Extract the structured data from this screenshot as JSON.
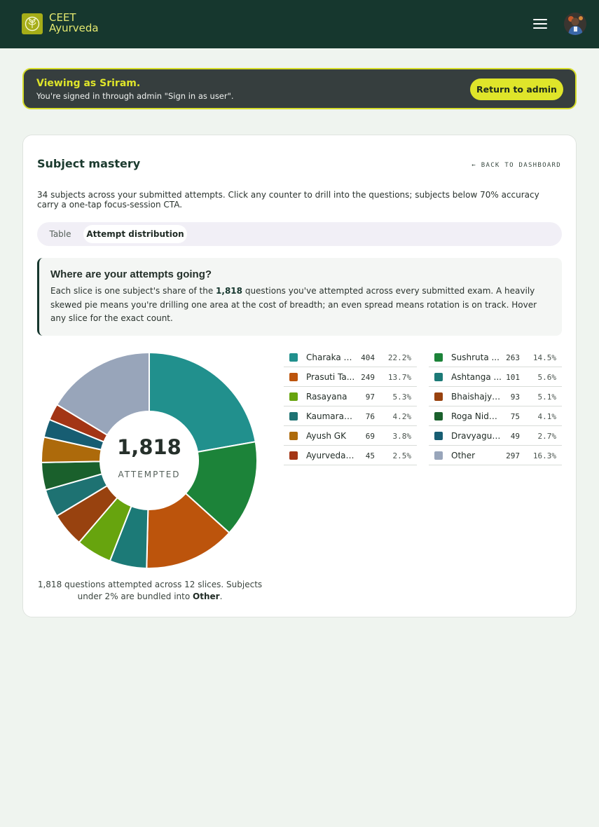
{
  "app": {
    "brand_line1": "CEET",
    "brand_line2": "Ayurveda",
    "accent": "#dfe52a",
    "header_bg": "#16372e"
  },
  "banner": {
    "title": "Viewing as Sriram.",
    "subtitle": "You're signed in through admin \"Sign in as user\".",
    "button": "Return to admin"
  },
  "card": {
    "title": "Subject mastery",
    "back_link": "← BACK TO DASHBOARD",
    "description": "34 subjects across your submitted attempts. Click any counter to drill into the questions; subjects below 70% accuracy carry a one-tap focus-session CTA.",
    "tabs": [
      "Table",
      "Attempt distribution"
    ],
    "active_tab": "Attempt distribution"
  },
  "info": {
    "title": "Where are your attempts going?",
    "text_before": "Each slice is one subject's share of the ",
    "text_bold": "1,818",
    "text_after": " questions you've attempted across every submitted exam. A heavily skewed pie means you're drilling one area at the cost of breadth; an even spread means rotation is on track. Hover any slice for the exact count."
  },
  "chart_center": {
    "number": "1,818",
    "label": "ATTEMPTED"
  },
  "chart_footer": {
    "before": "1,818 questions attempted across 12 slices. Subjects under 2% are bundled into ",
    "bold": "Other",
    "after": "."
  },
  "chart_data": {
    "type": "pie",
    "total": 1818,
    "slices": [
      {
        "name": "Charaka S...",
        "value": 404,
        "pct": "22.2%",
        "color": "#21908d"
      },
      {
        "name": "Sushruta ...",
        "value": 263,
        "pct": "14.5%",
        "color": "#1c8339"
      },
      {
        "name": "Prasuti Ta...",
        "value": 249,
        "pct": "13.7%",
        "color": "#bc540c"
      },
      {
        "name": "Ashtanga ...",
        "value": 101,
        "pct": "5.6%",
        "color": "#1c7a77"
      },
      {
        "name": "Rasayana",
        "value": 97,
        "pct": "5.3%",
        "color": "#67a40e"
      },
      {
        "name": "Bhaishajya ...",
        "value": 93,
        "pct": "5.1%",
        "color": "#98420f"
      },
      {
        "name": "Kaumarab...",
        "value": 76,
        "pct": "4.2%",
        "color": "#1e7272"
      },
      {
        "name": "Roga Nidana",
        "value": 75,
        "pct": "4.1%",
        "color": "#1a602c"
      },
      {
        "name": "Ayush GK",
        "value": 69,
        "pct": "3.8%",
        "color": "#ad6a0b"
      },
      {
        "name": "Dravyagun...",
        "value": 49,
        "pct": "2.7%",
        "color": "#175d72"
      },
      {
        "name": "Ayurveda I...",
        "value": 45,
        "pct": "2.5%",
        "color": "#a33515"
      },
      {
        "name": "Other",
        "value": 297,
        "pct": "16.3%",
        "color": "#98a5ba"
      }
    ]
  }
}
